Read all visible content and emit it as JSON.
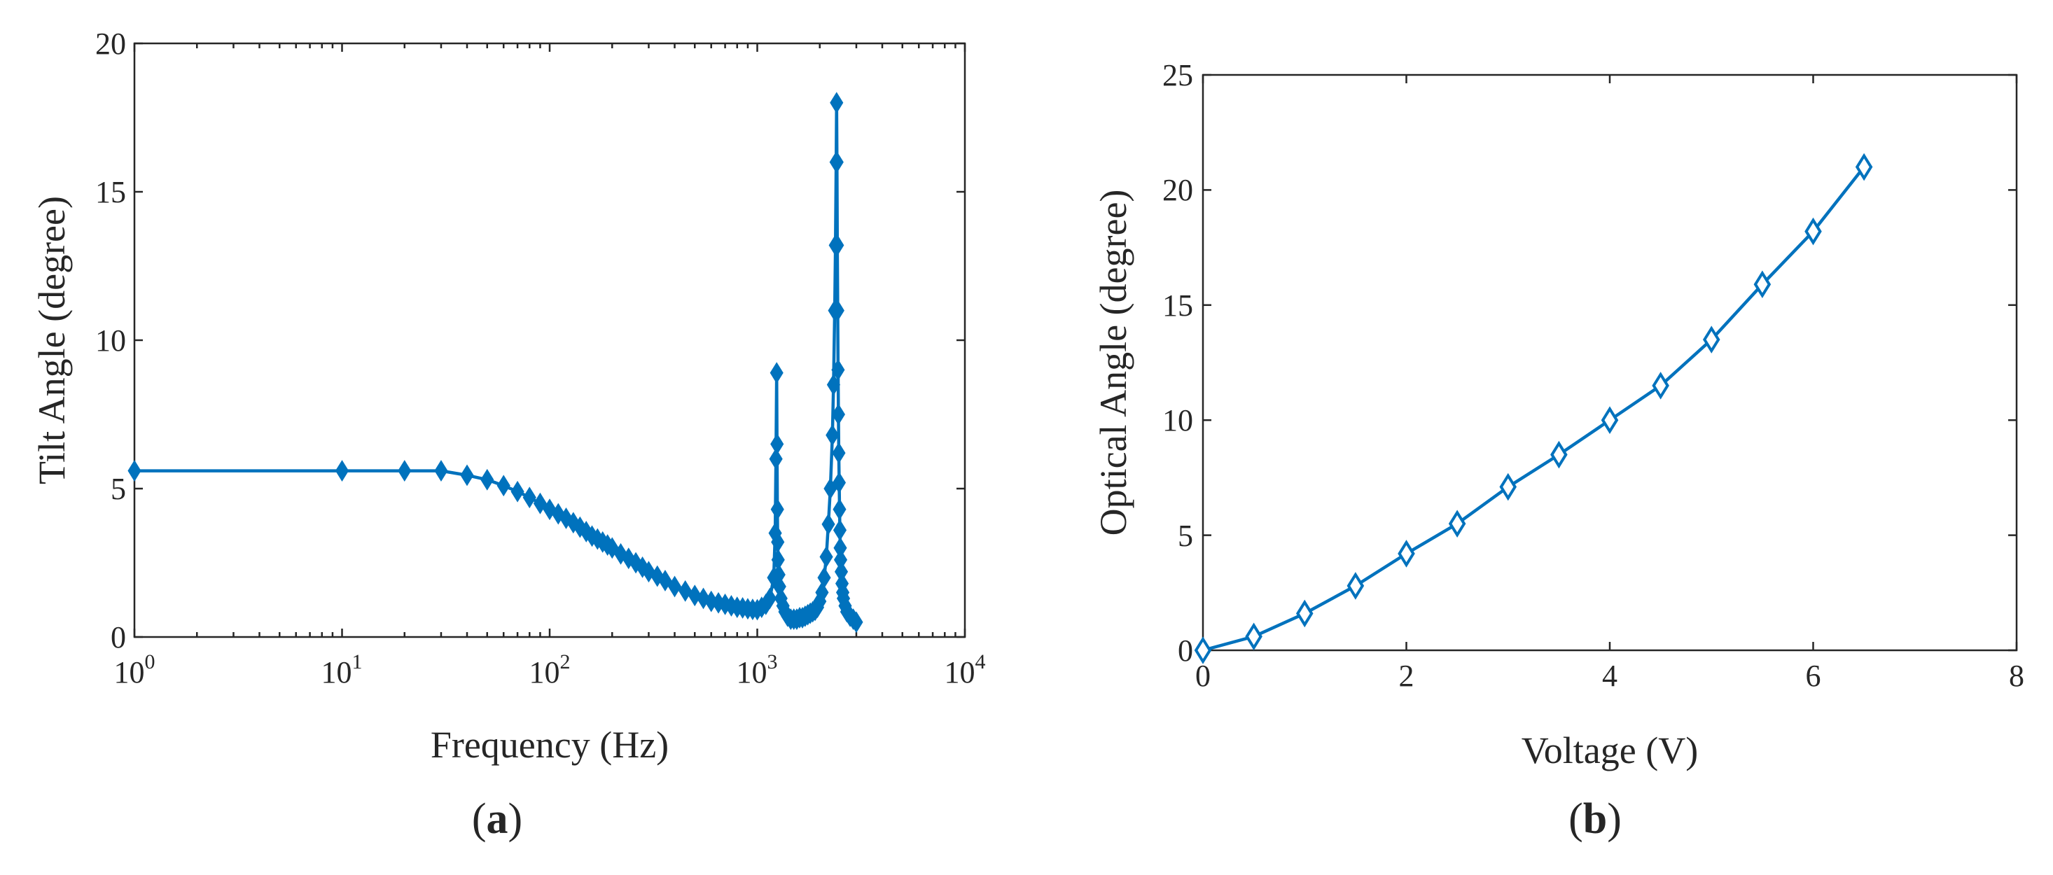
{
  "colors": {
    "series": "#0072BD",
    "axis": "#262626"
  },
  "marker": "diamond",
  "chart_data": [
    {
      "type": "line",
      "panel_label": "(a)",
      "panel_label_letter": "a",
      "xlabel": "Frequency (Hz)",
      "ylabel": "Tilt Angle (degree)",
      "xscale": "log",
      "xlim": [
        1,
        10000
      ],
      "ylim": [
        0,
        20
      ],
      "xticks": [
        1,
        10,
        100,
        1000,
        10000
      ],
      "xtick_base": [
        "10",
        "10",
        "10",
        "10",
        "10"
      ],
      "xtick_exp": [
        "0",
        "1",
        "2",
        "3",
        "4"
      ],
      "yticks": [
        0,
        5,
        10,
        15,
        20
      ],
      "ytick_labels": [
        "0",
        "5",
        "10",
        "15",
        "20"
      ],
      "grid": false,
      "series": [
        {
          "name": "Tilt Angle",
          "x": [
            1,
            10,
            20,
            30,
            40,
            50,
            60,
            70,
            80,
            90,
            100,
            110,
            120,
            130,
            140,
            150,
            160,
            170,
            180,
            190,
            200,
            220,
            240,
            260,
            280,
            300,
            330,
            360,
            400,
            450,
            500,
            550,
            600,
            650,
            700,
            750,
            800,
            850,
            900,
            950,
            1000,
            1050,
            1100,
            1150,
            1200,
            1220,
            1230,
            1240,
            1245,
            1250,
            1255,
            1260,
            1270,
            1280,
            1300,
            1330,
            1360,
            1400,
            1450,
            1500,
            1550,
            1600,
            1650,
            1700,
            1750,
            1800,
            1850,
            1900,
            1950,
            2000,
            2050,
            2100,
            2150,
            2200,
            2250,
            2300,
            2330,
            2360,
            2380,
            2400,
            2410,
            2420,
            2430,
            2440,
            2450,
            2460,
            2470,
            2480,
            2490,
            2500,
            2510,
            2520,
            2540,
            2560,
            2580,
            2600,
            2650,
            2700,
            2800,
            2900,
            3000
          ],
          "y": [
            5.6,
            5.6,
            5.6,
            5.6,
            5.45,
            5.3,
            5.1,
            4.9,
            4.7,
            4.5,
            4.3,
            4.15,
            4.0,
            3.85,
            3.7,
            3.55,
            3.4,
            3.3,
            3.2,
            3.1,
            3.0,
            2.8,
            2.65,
            2.5,
            2.35,
            2.2,
            2.05,
            1.9,
            1.7,
            1.55,
            1.4,
            1.3,
            1.2,
            1.15,
            1.1,
            1.05,
            1.0,
            0.98,
            0.95,
            0.93,
            0.92,
            1.0,
            1.1,
            1.3,
            2.0,
            3.5,
            6.0,
            8.9,
            6.5,
            4.3,
            3.2,
            2.6,
            2.1,
            1.7,
            1.3,
            1.05,
            0.85,
            0.7,
            0.6,
            0.6,
            0.6,
            0.65,
            0.65,
            0.7,
            0.75,
            0.8,
            0.85,
            0.9,
            1.0,
            1.2,
            1.5,
            2.0,
            2.7,
            3.8,
            5.0,
            6.8,
            8.5,
            11.0,
            13.2,
            16.0,
            18.0,
            16.0,
            13.2,
            11.0,
            9.0,
            7.5,
            6.2,
            5.2,
            4.3,
            3.6,
            3.0,
            2.6,
            2.2,
            1.8,
            1.5,
            1.3,
            1.05,
            0.85,
            0.7,
            0.6,
            0.5
          ]
        }
      ]
    },
    {
      "type": "line",
      "panel_label": "(b)",
      "panel_label_letter": "b",
      "xlabel": "Voltage (V)",
      "ylabel": "Optical Angle (degree)",
      "xscale": "linear",
      "xlim": [
        0,
        8
      ],
      "ylim": [
        0,
        25
      ],
      "xticks": [
        0,
        2,
        4,
        6,
        8
      ],
      "xtick_labels": [
        "0",
        "2",
        "4",
        "6",
        "8"
      ],
      "yticks": [
        0,
        5,
        10,
        15,
        20,
        25
      ],
      "ytick_labels": [
        "0",
        "5",
        "10",
        "15",
        "20",
        "25"
      ],
      "grid": false,
      "series": [
        {
          "name": "Optical Angle",
          "x": [
            0,
            0.5,
            1,
            1.5,
            2,
            2.5,
            3,
            3.5,
            4,
            4.5,
            5,
            5.5,
            6,
            6.5
          ],
          "y": [
            0,
            0.6,
            1.6,
            2.8,
            4.2,
            5.5,
            7.1,
            8.5,
            10.0,
            11.5,
            13.5,
            15.9,
            18.2,
            21.0
          ]
        }
      ]
    }
  ]
}
